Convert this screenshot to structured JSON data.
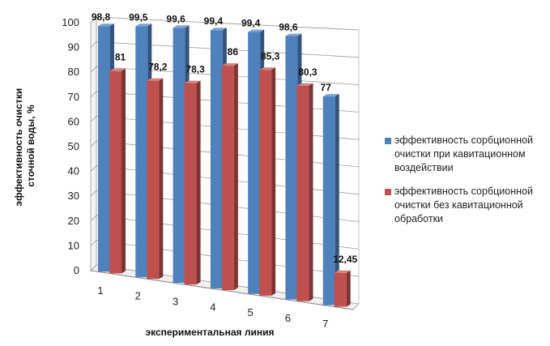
{
  "chart_data": {
    "type": "bar",
    "categories": [
      "1",
      "2",
      "3",
      "4",
      "5",
      "6",
      "7"
    ],
    "series": [
      {
        "name": "эффективность сорбционной очистки при кавитационном воздействии",
        "legend_lines": [
          "эффективность сорбционной",
          "очистки при кавитационном",
          "воздействии"
        ],
        "values": [
          98.8,
          99.5,
          99.6,
          99.4,
          99.4,
          98.6,
          77
        ],
        "labels": [
          "98,8",
          "99,5",
          "99,6",
          "99,4",
          "99,4",
          "98,6",
          "77"
        ],
        "color": "#4f81bd"
      },
      {
        "name": "эффективность сорбционной очистки без кавитационной обработки",
        "legend_lines": [
          "эффективность сорбционной",
          "очистки без кавитационной",
          "обработки"
        ],
        "values": [
          81,
          78.2,
          78.3,
          86,
          85.3,
          80.3,
          12.45
        ],
        "labels": [
          "81",
          "78,2",
          "78,3",
          "86",
          "85,3",
          "80,3",
          "12,45"
        ],
        "color": "#c0504d"
      }
    ],
    "yticks": [
      "0",
      "10",
      "20",
      "30",
      "40",
      "50",
      "60",
      "70",
      "80",
      "90",
      "100"
    ],
    "ylim": [
      0,
      100
    ],
    "xlabel": "экспериментальная линия",
    "ylabel_lines": [
      "эффективность очистки",
      "сточной воды, %"
    ],
    "grid": true,
    "legend_position": "right",
    "view": "3d-column"
  }
}
